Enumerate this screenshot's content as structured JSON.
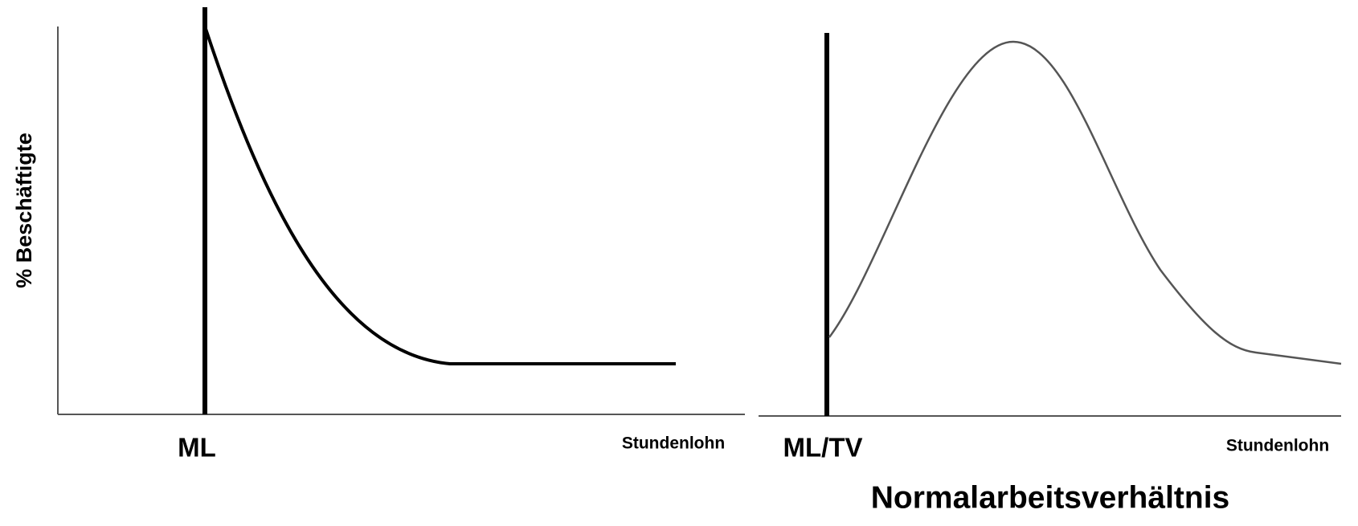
{
  "y_axis_label": "% Beschäftigte",
  "left_panel": {
    "marker_label": "ML",
    "x_axis_label": "Stundenlohn"
  },
  "right_panel": {
    "marker_label": "ML/TV",
    "x_axis_label": "Stundenlohn",
    "title": "Normalarbeitsverhältnis"
  }
}
